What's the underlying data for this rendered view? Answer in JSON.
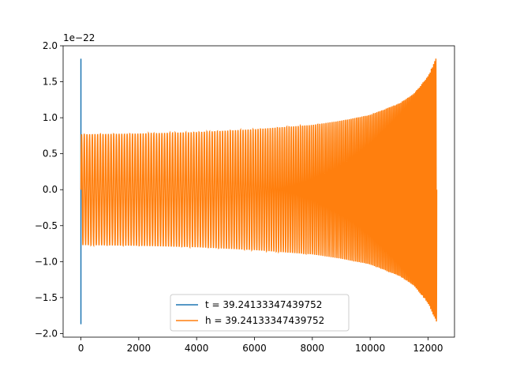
{
  "chart_data": {
    "type": "line",
    "title": "",
    "xlabel": "",
    "ylabel": "",
    "xlim": [
      -615,
      12915
    ],
    "ylim": [
      -2.05,
      2.0
    ],
    "y_offset_label": "1e−22",
    "x_ticks": [
      0,
      2000,
      4000,
      6000,
      8000,
      10000,
      12000
    ],
    "x_tick_labels": [
      "0",
      "2000",
      "4000",
      "6000",
      "8000",
      "10000",
      "12000"
    ],
    "y_ticks": [
      -2.0,
      -1.5,
      -1.0,
      -0.5,
      0.0,
      0.5,
      1.0,
      1.5,
      2.0
    ],
    "y_tick_labels": [
      "−2.0",
      "−1.5",
      "−1.0",
      "−0.5",
      "0.0",
      "0.5",
      "1.0",
      "1.5",
      "2.0"
    ],
    "grid": false,
    "legend_position": "lower-center",
    "series": [
      {
        "name": "t = 39.24133347439752",
        "color": "#1f77b4",
        "x": [
          0,
          0,
          0
        ],
        "y": [
          -1.87,
          1.82,
          0.0
        ]
      },
      {
        "name": "h = 39.24133347439752",
        "color": "#ff7f0e",
        "x_range": [
          0,
          12300
        ],
        "envelope": {
          "x": [
            0,
            2000,
            4000,
            6000,
            8000,
            9000,
            10000,
            11000,
            11500,
            12000,
            12300
          ],
          "amplitude": [
            0.77,
            0.78,
            0.8,
            0.84,
            0.9,
            0.96,
            1.04,
            1.2,
            1.33,
            1.58,
            1.85
          ]
        },
        "cycles": 170
      }
    ]
  }
}
